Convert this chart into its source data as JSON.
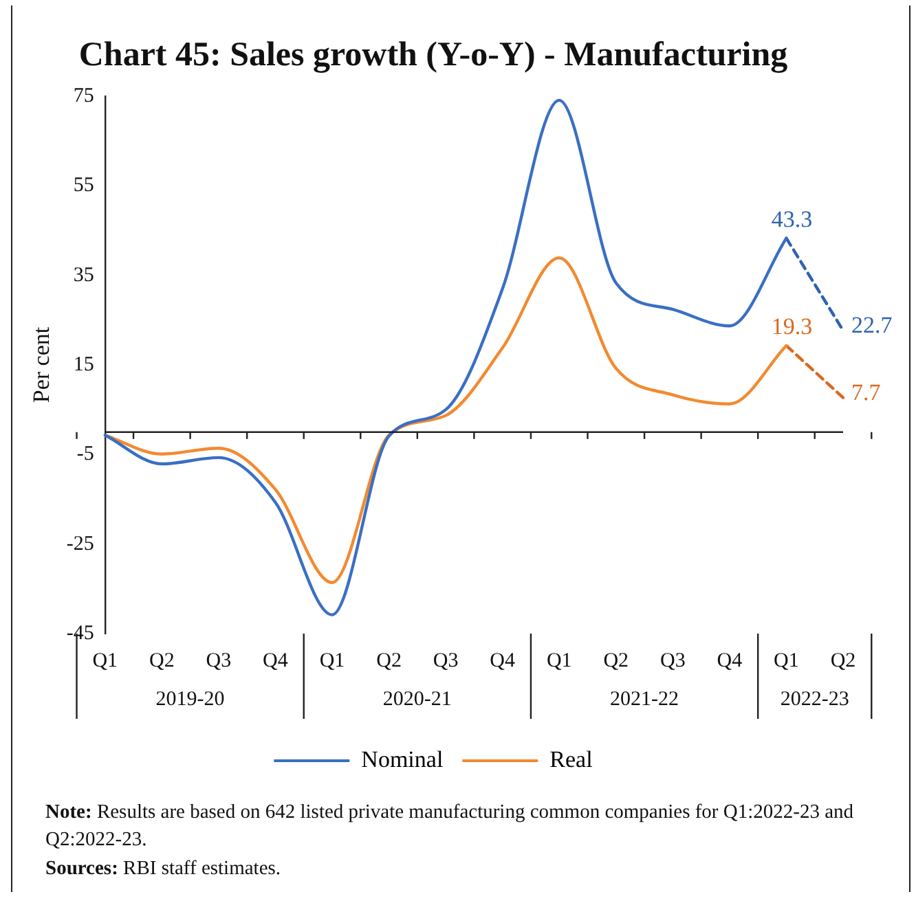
{
  "chart_data": {
    "type": "line",
    "title": "Chart 45: Sales growth (Y-o-Y) - Manufacturing",
    "ylabel": "Per cent",
    "categories": [
      "Q1",
      "Q2",
      "Q3",
      "Q4",
      "Q1",
      "Q2",
      "Q3",
      "Q4",
      "Q1",
      "Q2",
      "Q3",
      "Q4",
      "Q1",
      "Q2"
    ],
    "series": [
      {
        "name": "Nominal",
        "color": "#3a6fc4",
        "line_style": "solid",
        "values": [
          -0.7,
          -7.1,
          -5.7,
          -15.7,
          -40.8,
          -0.9,
          5.0,
          32,
          74.1,
          33.3,
          27.4,
          23.7,
          43.3,
          null
        ]
      },
      {
        "name": "Real",
        "color": "#f28a30",
        "line_style": "solid",
        "values": [
          -0.7,
          -4.9,
          -3.6,
          -12.8,
          -33.6,
          -0.7,
          3.7,
          18.8,
          38.9,
          14.2,
          8.3,
          6.3,
          19.3,
          null
        ]
      },
      {
        "color": "#2e62b0",
        "line_style": "dashed",
        "values": [
          null,
          null,
          null,
          null,
          null,
          null,
          null,
          null,
          null,
          null,
          null,
          null,
          43.3,
          22.7
        ],
        "value_labels": [
          null,
          null,
          null,
          null,
          null,
          null,
          null,
          null,
          null,
          null,
          null,
          null,
          "43.3",
          "22.7"
        ]
      },
      {
        "color": "#d9691e",
        "line_style": "dashed",
        "values": [
          null,
          null,
          null,
          null,
          null,
          null,
          null,
          null,
          null,
          null,
          null,
          null,
          19.3,
          7.7
        ],
        "value_labels": [
          null,
          null,
          null,
          null,
          null,
          null,
          null,
          null,
          null,
          null,
          null,
          null,
          "19.3",
          "7.7"
        ]
      }
    ],
    "ylim": [
      -45,
      75
    ],
    "yticks": [
      -45,
      -25,
      -5,
      15,
      35,
      55,
      75
    ],
    "grid": false,
    "legend": "bottom",
    "marker": "none",
    "annotations": [
      {
        "text": "2019-20"
      },
      {
        "text": "2020-21"
      },
      {
        "text": "2021-22"
      },
      {
        "text": "2022-23"
      },
      "Note: Results are based on 642  listed private manufacturing common companies for Q1:2022-23 and Q2:2022-23.",
      "Sources: RBI staff estimates."
    ]
  }
}
